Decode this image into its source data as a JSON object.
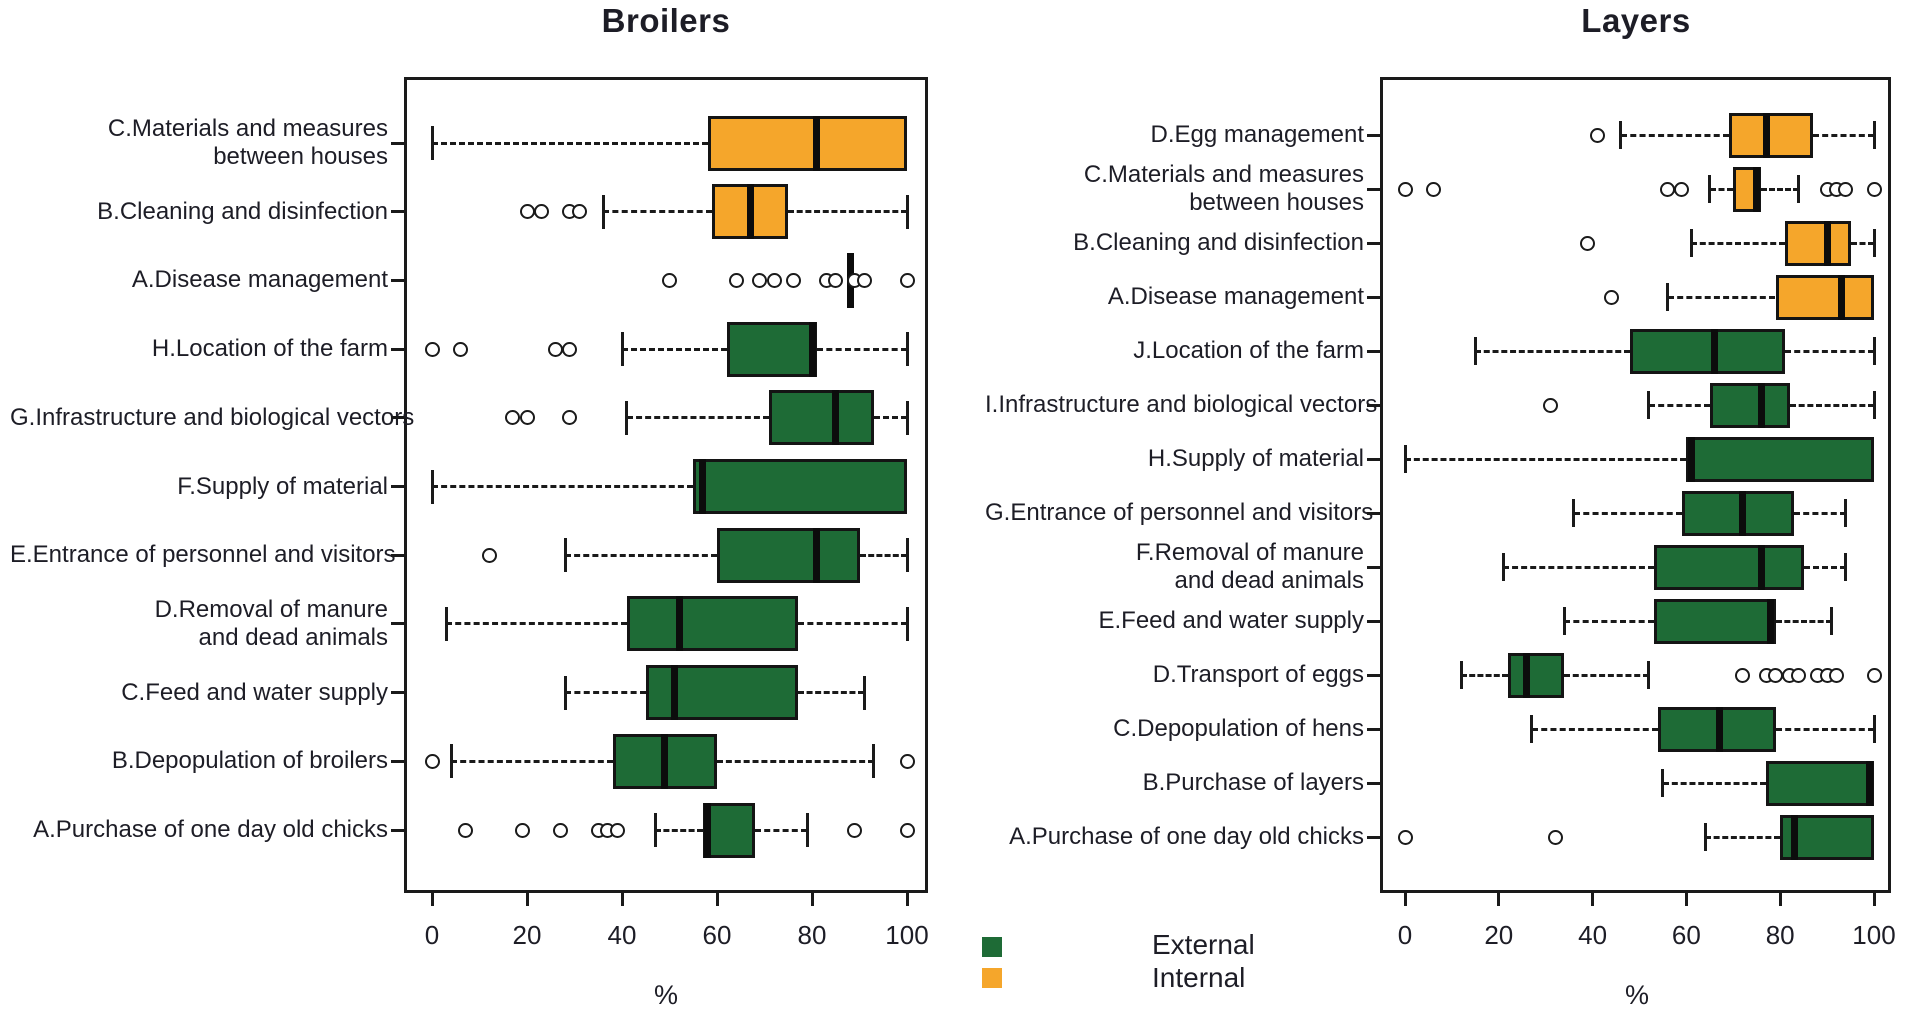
{
  "figure": {
    "background": "#ffffff"
  },
  "colors": {
    "external": "#1e6b36",
    "internal": "#f5a62b",
    "axis": "#1a1a1a",
    "text": "#1d1d26"
  },
  "legend": {
    "position": "bottom-center",
    "items": [
      {
        "label": "External",
        "group": "external",
        "color": "#1e6b36"
      },
      {
        "label": "Internal",
        "group": "internal",
        "color": "#f5a62b"
      }
    ]
  },
  "chart_data": [
    {
      "type": "boxplot",
      "orientation": "horizontal",
      "title": "Broilers",
      "xlabel": "%",
      "xlim": [
        0,
        100
      ],
      "xticks": [
        0,
        20,
        40,
        60,
        80,
        100
      ],
      "grid": false,
      "rows": [
        {
          "label_lines": [
            "C.Materials and measures",
            "between houses"
          ],
          "group": "internal",
          "whisker_low": 0,
          "q1": 58,
          "median": 81,
          "q3": 100,
          "whisker_high": 100,
          "outliers": []
        },
        {
          "label_lines": [
            "B.Cleaning and disinfection"
          ],
          "group": "internal",
          "whisker_low": 36,
          "q1": 59,
          "median": 67,
          "q3": 75,
          "whisker_high": 100,
          "outliers": [
            20,
            23,
            29,
            31
          ]
        },
        {
          "label_lines": [
            "A.Disease management"
          ],
          "group": "internal",
          "whisker_low": 88,
          "q1": 88,
          "median": 88,
          "q3": 88,
          "whisker_high": 88,
          "outliers": [
            50,
            64,
            69,
            72,
            76,
            83,
            85,
            89,
            91,
            100
          ]
        },
        {
          "label_lines": [
            "H.Location of the farm"
          ],
          "group": "external",
          "whisker_low": 40,
          "q1": 62,
          "median": 80,
          "q3": 81,
          "whisker_high": 100,
          "outliers": [
            0,
            6,
            26,
            29
          ]
        },
        {
          "label_lines": [
            "G.Infrastructure and biological vectors"
          ],
          "group": "external",
          "whisker_low": 41,
          "q1": 71,
          "median": 85,
          "q3": 93,
          "whisker_high": 100,
          "outliers": [
            17,
            20,
            29
          ]
        },
        {
          "label_lines": [
            "F.Supply of material"
          ],
          "group": "external",
          "whisker_low": 0,
          "q1": 55,
          "median": 57,
          "q3": 100,
          "whisker_high": 100,
          "outliers": []
        },
        {
          "label_lines": [
            "E.Entrance of personnel and visitors"
          ],
          "group": "external",
          "whisker_low": 28,
          "q1": 60,
          "median": 81,
          "q3": 90,
          "whisker_high": 100,
          "outliers": [
            12
          ]
        },
        {
          "label_lines": [
            "D.Removal of manure",
            "and dead animals"
          ],
          "group": "external",
          "whisker_low": 3,
          "q1": 41,
          "median": 52,
          "q3": 77,
          "whisker_high": 100,
          "outliers": []
        },
        {
          "label_lines": [
            "C.Feed and water supply"
          ],
          "group": "external",
          "whisker_low": 28,
          "q1": 45,
          "median": 51,
          "q3": 77,
          "whisker_high": 91,
          "outliers": []
        },
        {
          "label_lines": [
            "B.Depopulation of broilers"
          ],
          "group": "external",
          "whisker_low": 4,
          "q1": 38,
          "median": 49,
          "q3": 60,
          "whisker_high": 93,
          "outliers": [
            0,
            100
          ]
        },
        {
          "label_lines": [
            "A.Purchase of one day old chicks"
          ],
          "group": "external",
          "whisker_low": 47,
          "q1": 57,
          "median": 58,
          "q3": 68,
          "whisker_high": 79,
          "outliers": [
            7,
            19,
            27,
            35,
            37,
            39,
            89,
            100
          ]
        }
      ]
    },
    {
      "type": "boxplot",
      "orientation": "horizontal",
      "title": "Layers",
      "xlabel": "%",
      "xlim": [
        0,
        100
      ],
      "xticks": [
        0,
        20,
        40,
        60,
        80,
        100
      ],
      "grid": false,
      "rows": [
        {
          "label_lines": [
            "D.Egg management"
          ],
          "group": "internal",
          "whisker_low": 46,
          "q1": 69,
          "median": 77,
          "q3": 87,
          "whisker_high": 100,
          "outliers": [
            41
          ]
        },
        {
          "label_lines": [
            "C.Materials and measures",
            "between houses"
          ],
          "group": "internal",
          "whisker_low": 65,
          "q1": 70,
          "median": 75,
          "q3": 76,
          "whisker_high": 84,
          "outliers": [
            0,
            6,
            56,
            59,
            90,
            92,
            94,
            100
          ]
        },
        {
          "label_lines": [
            "B.Cleaning and disinfection"
          ],
          "group": "internal",
          "whisker_low": 61,
          "q1": 81,
          "median": 90,
          "q3": 95,
          "whisker_high": 100,
          "outliers": [
            39
          ]
        },
        {
          "label_lines": [
            "A.Disease management"
          ],
          "group": "internal",
          "whisker_low": 56,
          "q1": 79,
          "median": 93,
          "q3": 100,
          "whisker_high": 100,
          "outliers": [
            44
          ]
        },
        {
          "label_lines": [
            "J.Location of the farm"
          ],
          "group": "external",
          "whisker_low": 15,
          "q1": 48,
          "median": 66,
          "q3": 81,
          "whisker_high": 100,
          "outliers": []
        },
        {
          "label_lines": [
            "I.Infrastructure and biological vectors"
          ],
          "group": "external",
          "whisker_low": 52,
          "q1": 65,
          "median": 76,
          "q3": 82,
          "whisker_high": 100,
          "outliers": [
            31
          ]
        },
        {
          "label_lines": [
            "H.Supply of material"
          ],
          "group": "external",
          "whisker_low": 0,
          "q1": 60,
          "median": 61,
          "q3": 100,
          "whisker_high": 100,
          "outliers": []
        },
        {
          "label_lines": [
            "G.Entrance of personnel and visitors"
          ],
          "group": "external",
          "whisker_low": 36,
          "q1": 59,
          "median": 72,
          "q3": 83,
          "whisker_high": 94,
          "outliers": []
        },
        {
          "label_lines": [
            "F.Removal of manure",
            "and dead animals"
          ],
          "group": "external",
          "whisker_low": 21,
          "q1": 53,
          "median": 76,
          "q3": 85,
          "whisker_high": 94,
          "outliers": []
        },
        {
          "label_lines": [
            "E.Feed and water supply"
          ],
          "group": "external",
          "whisker_low": 34,
          "q1": 53,
          "median": 78,
          "q3": 79,
          "whisker_high": 91,
          "outliers": []
        },
        {
          "label_lines": [
            "D.Transport of eggs"
          ],
          "group": "external",
          "whisker_low": 12,
          "q1": 22,
          "median": 26,
          "q3": 34,
          "whisker_high": 52,
          "outliers": [
            72,
            77,
            79,
            82,
            84,
            88,
            90,
            92,
            100
          ]
        },
        {
          "label_lines": [
            "C.Depopulation of hens"
          ],
          "group": "external",
          "whisker_low": 27,
          "q1": 54,
          "median": 67,
          "q3": 79,
          "whisker_high": 100,
          "outliers": []
        },
        {
          "label_lines": [
            "B.Purchase of layers"
          ],
          "group": "external",
          "whisker_low": 55,
          "q1": 77,
          "median": 99,
          "q3": 100,
          "whisker_high": 100,
          "outliers": []
        },
        {
          "label_lines": [
            "A.Purchase of one day old chicks"
          ],
          "group": "external",
          "whisker_low": 64,
          "q1": 80,
          "median": 83,
          "q3": 100,
          "whisker_high": 100,
          "outliers": [
            0,
            32
          ]
        }
      ]
    }
  ]
}
